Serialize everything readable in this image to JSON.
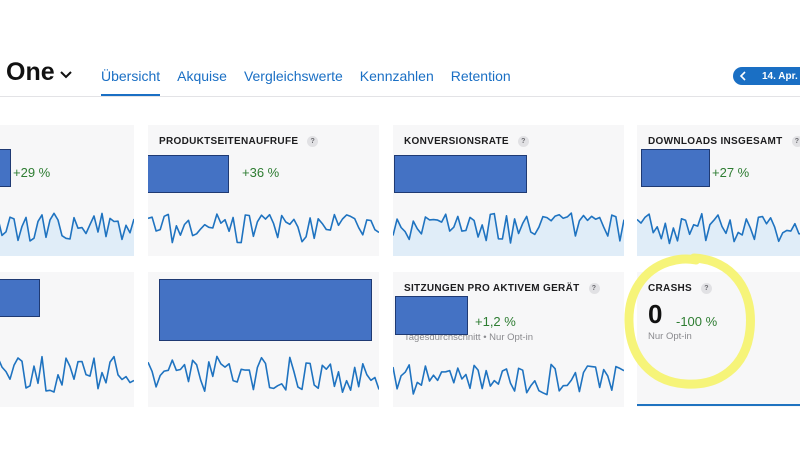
{
  "header": {
    "app_title": "One",
    "tabs": [
      {
        "label": "Übersicht",
        "active": true
      },
      {
        "label": "Akquise",
        "active": false
      },
      {
        "label": "Vergleichswerte",
        "active": false
      },
      {
        "label": "Kennzahlen",
        "active": false
      },
      {
        "label": "Retention",
        "active": false
      }
    ],
    "date_label": "14. Apr. -"
  },
  "cards": [
    {
      "id": "top-left",
      "title": "",
      "change": "+29 %"
    },
    {
      "id": "produktseitenaufrufe",
      "title": "PRODUKTSEITENAUFRUFE",
      "help": "?",
      "change": "+36 %"
    },
    {
      "id": "konversionsrate",
      "title": "KONVERSIONSRATE",
      "help": "?",
      "change": ""
    },
    {
      "id": "downloads",
      "title": "DOWNLOADS INSGESAMT",
      "help": "?",
      "change": "+27 %"
    },
    {
      "id": "bottom-left",
      "title": "",
      "change": ""
    },
    {
      "id": "bottom-second",
      "title": "",
      "change": ""
    },
    {
      "id": "sitzungen",
      "title": "SITZUNGEN PRO AKTIVEM GERÄT",
      "help": "?",
      "change": "+1,2 %",
      "subtitle": "Tagesdurchschnitt • Nur Opt-in"
    },
    {
      "id": "crashs",
      "title": "CRASHS",
      "help": "?",
      "value": "0",
      "change": "-100 %",
      "subtitle": "Nur Opt-in"
    }
  ],
  "colors": {
    "accent": "#1a6fc4",
    "positive": "#2e7d32",
    "redaction": "#4472c4",
    "highlight": "#f5f36a"
  }
}
